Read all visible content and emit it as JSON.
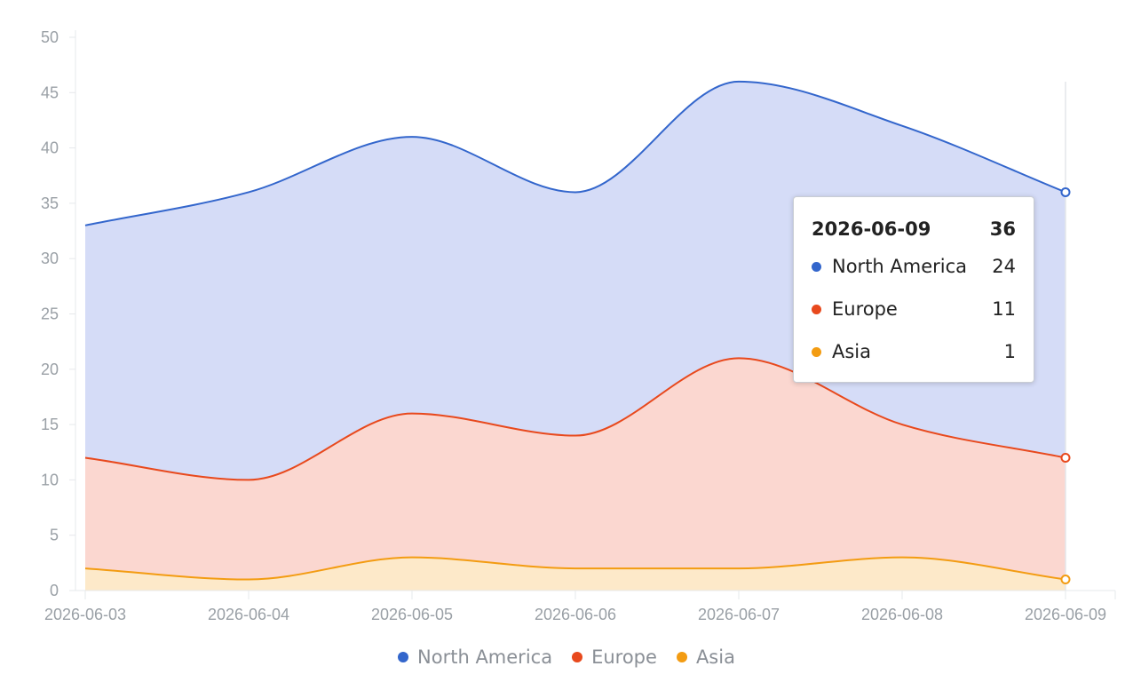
{
  "chart_data": {
    "type": "area",
    "stacked": true,
    "smooth": true,
    "x": [
      "2026-06-03",
      "2026-06-04",
      "2026-06-05",
      "2026-06-06",
      "2026-06-07",
      "2026-06-08",
      "2026-06-09"
    ],
    "series": [
      {
        "name": "Asia",
        "values": [
          2,
          1,
          3,
          2,
          2,
          3,
          1
        ],
        "color": "#f39c12",
        "fill": "#fde9c9"
      },
      {
        "name": "Europe",
        "values": [
          10,
          9,
          13,
          12,
          19,
          12,
          11
        ],
        "color": "#e8491d",
        "fill": "#fbd7d0"
      },
      {
        "name": "North America",
        "values": [
          21,
          26,
          25,
          22,
          25,
          27,
          24
        ],
        "color": "#3366cc",
        "fill": "#d5dcf7"
      }
    ],
    "ylim": [
      0,
      50
    ],
    "yticks": [
      0,
      5,
      10,
      15,
      20,
      25,
      30,
      35,
      40,
      45,
      50
    ],
    "legend": {
      "position": "bottom",
      "items": [
        {
          "name": "North America",
          "color": "#3366cc"
        },
        {
          "name": "Europe",
          "color": "#e8491d"
        },
        {
          "name": "Asia",
          "color": "#f39c12"
        }
      ]
    },
    "tooltip": {
      "title": "2026-06-09",
      "total": "36",
      "rows": [
        {
          "name": "North America",
          "value": "24",
          "color": "#3366cc"
        },
        {
          "name": "Europe",
          "value": "11",
          "color": "#e8491d"
        },
        {
          "name": "Asia",
          "value": "1",
          "color": "#f39c12"
        }
      ]
    }
  }
}
